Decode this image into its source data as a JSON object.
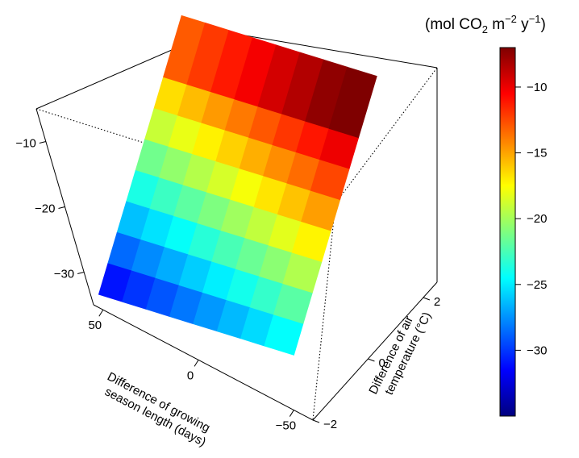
{
  "chart_data": {
    "type": "surface",
    "title": "",
    "unit_label": {
      "prefix": "(mol CO",
      "sub": "2",
      "mid": " m",
      "sup1": "−2",
      "mid2": " y",
      "sup2": "−1",
      "suffix": ")"
    },
    "xlabel": [
      "Difference of growing",
      "season length (days)"
    ],
    "ylabel": [
      "Difference of air",
      "temperature (°C)"
    ],
    "zlabel": "",
    "x": [
      50,
      36.7,
      23.3,
      10,
      -3.3,
      -16.7,
      -30,
      -43.3,
      -60
    ],
    "y": [
      -2,
      -1.5,
      -1,
      -0.5,
      0,
      0.5,
      1,
      1.5,
      2.5
    ],
    "xlim": [
      55,
      -60
    ],
    "ylim": [
      -2,
      2.5
    ],
    "zlim": [
      -35,
      -5
    ],
    "x_ticks": [
      {
        "value": 50,
        "label": "50"
      },
      {
        "value": 0,
        "label": "0"
      },
      {
        "value": -50,
        "label": "−50"
      }
    ],
    "y_ticks": [
      {
        "value": -2,
        "label": "−2"
      },
      {
        "value": 0,
        "label": "0"
      },
      {
        "value": 2,
        "label": "2"
      }
    ],
    "z_ticks": [
      {
        "value": -10,
        "label": "−10"
      },
      {
        "value": -20,
        "label": "−20"
      },
      {
        "value": -30,
        "label": "−30"
      }
    ],
    "colorbar": {
      "min": -35,
      "max": -7,
      "colors": [
        "#00007f",
        "#0000ff",
        "#007fff",
        "#00ffff",
        "#7fff7f",
        "#ffff00",
        "#ff7f00",
        "#ff0000",
        "#7f0000"
      ],
      "ticks": [
        {
          "value": -10,
          "label": "−10"
        },
        {
          "value": -15,
          "label": "−15"
        },
        {
          "value": -20,
          "label": "−20"
        },
        {
          "value": -25,
          "label": "−25"
        },
        {
          "value": -30,
          "label": "−30"
        }
      ]
    },
    "z_formula": {
      "description": "z = a + b*x + c*y",
      "a": -19.6,
      "b": -0.069,
      "c": 4.8
    },
    "grid": false,
    "legend": "colorbar-right"
  }
}
